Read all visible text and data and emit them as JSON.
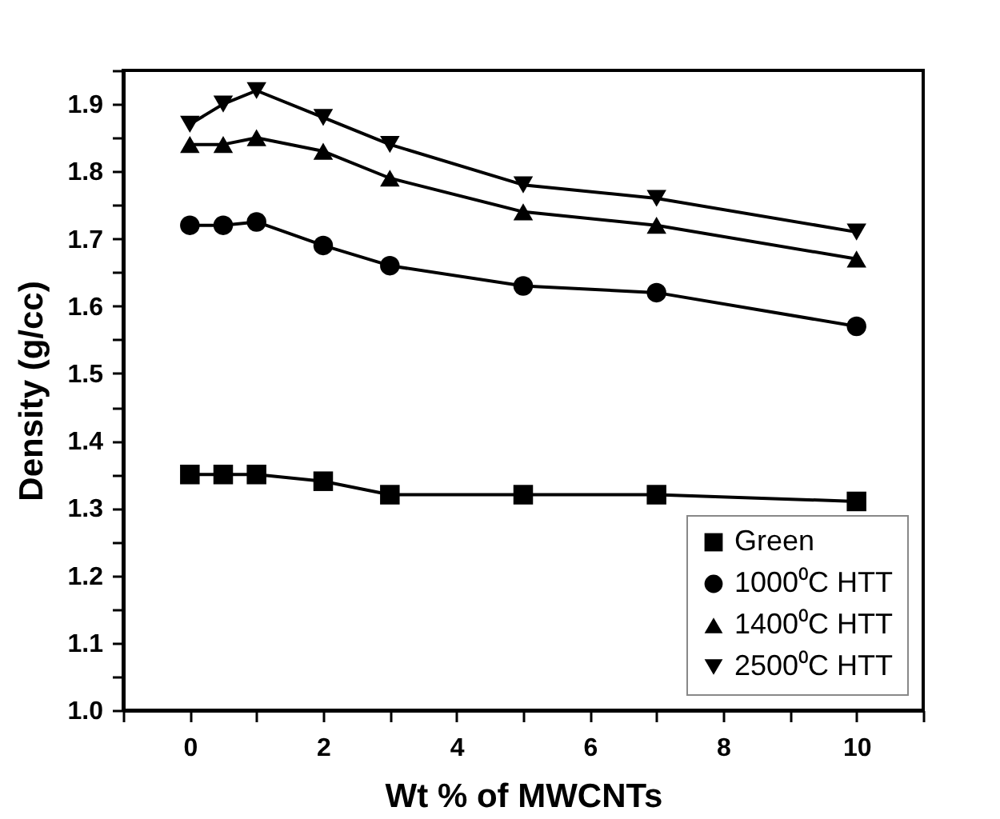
{
  "chart_data": {
    "type": "line",
    "xlabel": "Wt % of MWCNTs",
    "ylabel": "Density (g/cc)",
    "x": [
      0,
      0.5,
      1,
      2,
      3,
      5,
      7,
      10
    ],
    "series": [
      {
        "name": "Green",
        "color": "#000000",
        "marker": "square",
        "values": [
          1.35,
          1.35,
          1.35,
          1.34,
          1.32,
          1.32,
          1.32,
          1.31
        ]
      },
      {
        "name": "1000⁰C HTT",
        "color": "#000000",
        "marker": "circle",
        "values": [
          1.72,
          1.72,
          1.725,
          1.69,
          1.66,
          1.63,
          1.62,
          1.57
        ]
      },
      {
        "name": "1400⁰C HTT",
        "color": "#000000",
        "marker": "triangle",
        "values": [
          1.84,
          1.84,
          1.85,
          1.83,
          1.79,
          1.74,
          1.72,
          1.67
        ]
      },
      {
        "name": "2500⁰C HTT",
        "color": "#000000",
        "marker": "triangle-down",
        "values": [
          1.87,
          1.9,
          1.92,
          1.88,
          1.84,
          1.78,
          1.76,
          1.71
        ]
      }
    ],
    "xlim": [
      -1,
      11
    ],
    "xticks": [
      {
        "value": -1,
        "label": null
      },
      0,
      {
        "value": 1,
        "label": null
      },
      2,
      {
        "value": 3,
        "label": null
      },
      4,
      {
        "value": 5,
        "label": null
      },
      6,
      {
        "value": 7,
        "label": null
      },
      8,
      {
        "value": 9,
        "label": null
      },
      10,
      {
        "value": 11,
        "label": null
      }
    ],
    "ylim": [
      1.0,
      1.95
    ],
    "yticks": [
      {
        "value": 1.0,
        "label": "1.0"
      },
      {
        "value": 1.05,
        "label": null
      },
      1.1,
      {
        "value": 1.15,
        "label": null
      },
      1.2,
      {
        "value": 1.25,
        "label": null
      },
      1.3,
      {
        "value": 1.35,
        "label": null
      },
      1.4,
      {
        "value": 1.45,
        "label": null
      },
      1.5,
      {
        "value": 1.55,
        "label": null
      },
      1.6,
      {
        "value": 1.65,
        "label": null
      },
      1.7,
      {
        "value": 1.75,
        "label": null
      },
      1.8,
      {
        "value": 1.85,
        "label": null
      },
      1.9,
      {
        "value": 1.95,
        "label": null
      }
    ],
    "grid": false,
    "legend": "bottom right",
    "line_style": "solid"
  }
}
